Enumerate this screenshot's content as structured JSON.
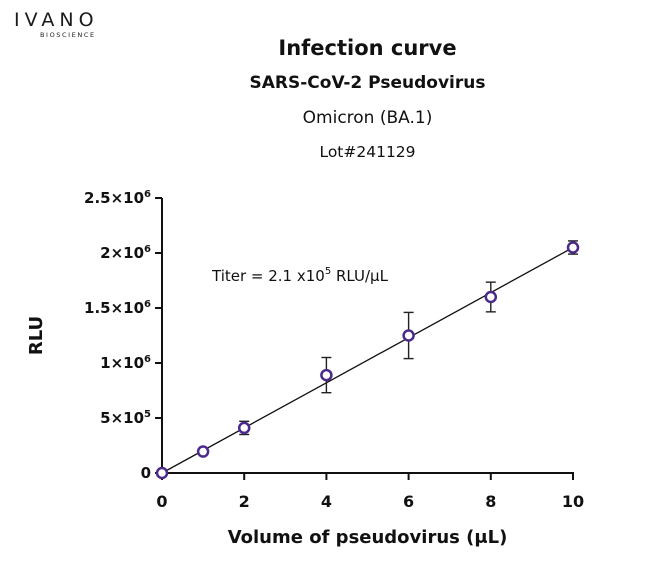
{
  "logo": {
    "name": "IVANO",
    "subtitle": "BIOSCIENCE"
  },
  "header": {
    "title": "Infection curve",
    "subtitle": "SARS-CoV-2 Pseudovirus",
    "variant": "Omicron (BA.1)",
    "lot": "Lot#241129"
  },
  "chart_data": {
    "type": "scatter",
    "title": "Infection curve",
    "xlabel": "Volume of pseudovirus (μL)",
    "ylabel": "RLU",
    "xlim": [
      0,
      10
    ],
    "ylim": [
      0,
      2500000
    ],
    "x_ticks": [
      0,
      2,
      4,
      6,
      8,
      10
    ],
    "x_tick_labels": [
      "0",
      "2",
      "4",
      "6",
      "8",
      "10"
    ],
    "y_ticks": [
      0,
      500000,
      1000000,
      1500000,
      2000000,
      2500000
    ],
    "y_tick_labels": [
      {
        "mant": "0",
        "exp": ""
      },
      {
        "mant": "5×10",
        "exp": "5"
      },
      {
        "mant": "1×10",
        "exp": "6"
      },
      {
        "mant": "1.5×10",
        "exp": "6"
      },
      {
        "mant": "2×10",
        "exp": "6"
      },
      {
        "mant": "2.5×10",
        "exp": "6"
      }
    ],
    "grid": false,
    "points": [
      {
        "x": 0,
        "y": 0,
        "err": 0
      },
      {
        "x": 1,
        "y": 195000,
        "err": 20000
      },
      {
        "x": 2,
        "y": 410000,
        "err": 60000
      },
      {
        "x": 4,
        "y": 890000,
        "err": 160000
      },
      {
        "x": 6,
        "y": 1250000,
        "err": 210000
      },
      {
        "x": 8,
        "y": 1600000,
        "err": 135000
      },
      {
        "x": 10,
        "y": 2050000,
        "err": 60000
      }
    ],
    "fit_line": {
      "x0": 0,
      "y0": 0,
      "x1": 10,
      "y1": 2050000
    },
    "annotation": {
      "prefix": "Titer = 2.1 x10",
      "exp": "5",
      "suffix": " RLU/µL"
    },
    "marker_color": "#4b2a8c",
    "line_color": "#111111"
  }
}
